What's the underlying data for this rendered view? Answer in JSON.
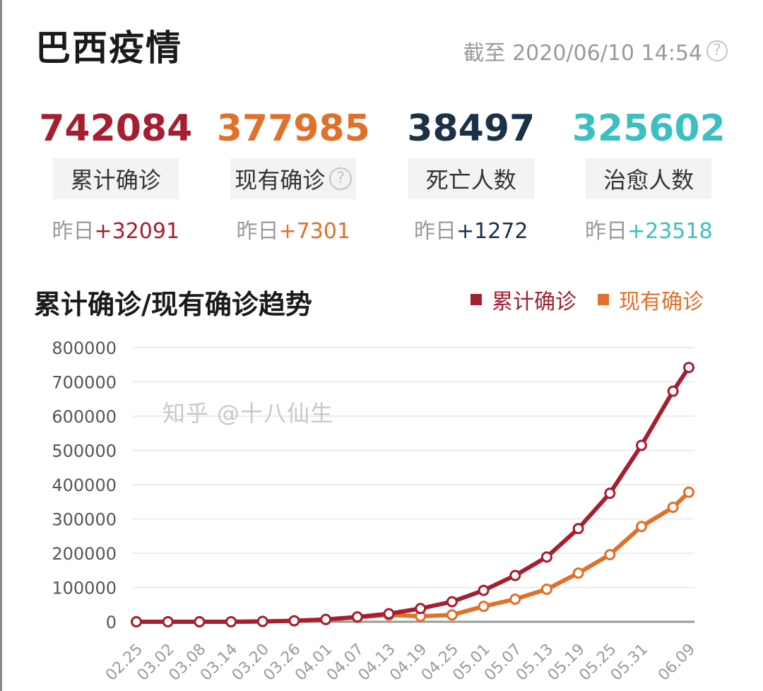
{
  "header": {
    "title": "巴西疫情",
    "timestamp": "截至 2020/06/10 14:54",
    "help_icon": "question-circle-icon"
  },
  "stats": [
    {
      "value": "742084",
      "label": "累计确诊",
      "yesterday_prefix": "昨日",
      "yesterday_delta": "+32091",
      "color": "#a51f30"
    },
    {
      "value": "377985",
      "label": "现有确诊",
      "yesterday_prefix": "昨日",
      "yesterday_delta": "+7301",
      "color": "#e0702a",
      "has_help": true
    },
    {
      "value": "38497",
      "label": "死亡人数",
      "yesterday_prefix": "昨日",
      "yesterday_delta": "+1272",
      "color": "#1b3148"
    },
    {
      "value": "325602",
      "label": "治愈人数",
      "yesterday_prefix": "昨日",
      "yesterday_delta": "+23518",
      "color": "#3cbfc0"
    }
  ],
  "chart_data": {
    "type": "line",
    "title": "累计确诊/现有确诊趋势",
    "legend_position": "top-right",
    "grid": true,
    "ylim": [
      0,
      800000
    ],
    "yticks": [
      "0",
      "100000",
      "200000",
      "300000",
      "400000",
      "500000",
      "600000",
      "700000",
      "800000"
    ],
    "x_labels": [
      "02.25",
      "03.02",
      "03.08",
      "03.14",
      "03.20",
      "03.26",
      "04.01",
      "04.07",
      "04.13",
      "04.19",
      "04.25",
      "05.01",
      "05.07",
      "05.13",
      "05.19",
      "05.25",
      "05.31",
      "06.09"
    ],
    "x": [
      "02.25",
      "03.02",
      "03.08",
      "03.14",
      "03.20",
      "03.26",
      "04.01",
      "04.07",
      "04.13",
      "04.19",
      "04.25",
      "05.01",
      "05.07",
      "05.13",
      "05.19",
      "05.25",
      "05.31",
      "06.06",
      "06.09"
    ],
    "series": [
      {
        "name": "累计确诊",
        "color": "#a51f30",
        "values": [
          1,
          2,
          25,
          121,
          904,
          2915,
          6836,
          14049,
          23430,
          38654,
          58509,
          91589,
          135106,
          188974,
          271885,
          374898,
          514849,
          672846,
          742084
        ]
      },
      {
        "name": "现有确诊",
        "color": "#e0702a",
        "values": [
          1,
          2,
          25,
          119,
          880,
          2780,
          6400,
          13000,
          20000,
          16000,
          20000,
          45000,
          66000,
          95000,
          142000,
          196000,
          278000,
          334000,
          377985
        ]
      }
    ]
  },
  "watermark": "知乎 @十八仙生"
}
